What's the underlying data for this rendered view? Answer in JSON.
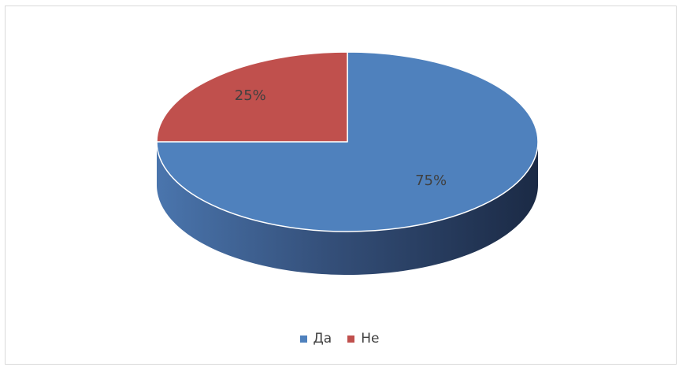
{
  "chart_data": {
    "type": "pie",
    "style": "3d",
    "categories": [
      "Да",
      "Не"
    ],
    "values": [
      75,
      25
    ],
    "data_labels": [
      "75%",
      "25%"
    ],
    "colors": [
      "#4f81bd",
      "#c0504d"
    ],
    "legend_position": "bottom",
    "title": ""
  }
}
